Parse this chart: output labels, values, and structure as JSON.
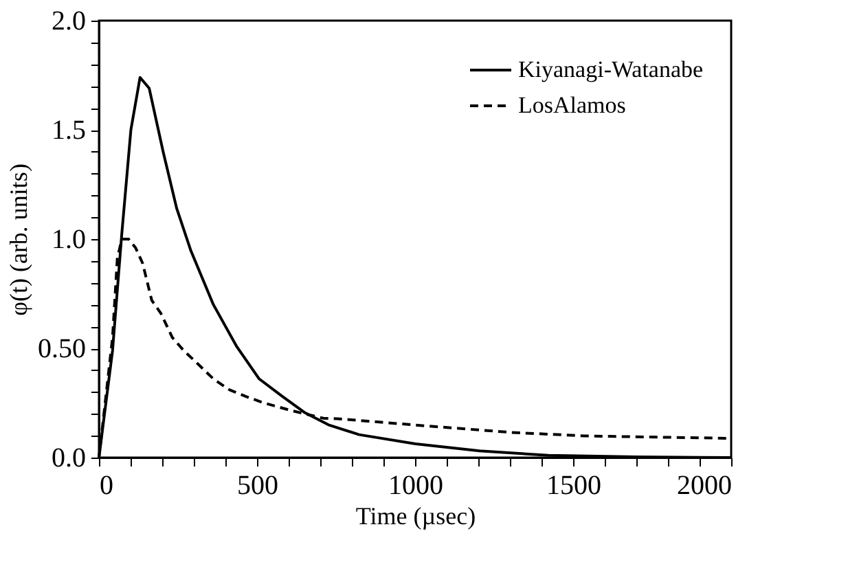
{
  "chart_data": {
    "type": "line",
    "xlabel": "Time (µsec)",
    "ylabel": "φ(t) (arb. units)",
    "xlim": [
      0,
      2000
    ],
    "ylim": [
      0,
      2.0
    ],
    "xticks": [
      0,
      {
        "value": 100,
        "label": null
      },
      {
        "value": 200,
        "label": null
      },
      {
        "value": 300,
        "label": null
      },
      {
        "value": 400,
        "label": null
      },
      500,
      {
        "value": 600,
        "label": null
      },
      {
        "value": 700,
        "label": null
      },
      {
        "value": 800,
        "label": null
      },
      {
        "value": 900,
        "label": null
      },
      1000,
      {
        "value": 1100,
        "label": null
      },
      {
        "value": 1200,
        "label": null
      },
      {
        "value": 1300,
        "label": null
      },
      {
        "value": 1400,
        "label": null
      },
      1500,
      {
        "value": 1600,
        "label": null
      },
      {
        "value": 1700,
        "label": null
      },
      {
        "value": 1800,
        "label": null
      },
      {
        "value": 1900,
        "label": null
      },
      2000
    ],
    "yticks": [
      {
        "value": 0,
        "label": "0.0"
      },
      {
        "value": 0.1,
        "label": null
      },
      {
        "value": 0.2,
        "label": null
      },
      {
        "value": 0.3,
        "label": null
      },
      {
        "value": 0.4,
        "label": null
      },
      {
        "value": 0.5,
        "label": "0.50"
      },
      {
        "value": 0.6,
        "label": null
      },
      {
        "value": 0.7,
        "label": null
      },
      {
        "value": 0.8,
        "label": null
      },
      {
        "value": 0.9,
        "label": null
      },
      {
        "value": 1.0,
        "label": "1.0"
      },
      {
        "value": 1.1,
        "label": null
      },
      {
        "value": 1.2,
        "label": null
      },
      {
        "value": 1.3,
        "label": null
      },
      {
        "value": 1.4,
        "label": null
      },
      {
        "value": 1.5,
        "label": "1.5"
      },
      {
        "value": 1.6,
        "label": null
      },
      {
        "value": 1.7,
        "label": null
      },
      {
        "value": 1.8,
        "label": null
      },
      {
        "value": 1.9,
        "label": null
      },
      {
        "value": 2.0,
        "label": "2.0"
      }
    ],
    "grid": false,
    "legend": "top right",
    "marker": "none",
    "series": [
      {
        "name": "Kiyanagi-Watanabe",
        "color": "#000000",
        "line_style": "solid",
        "x": [
          0,
          43,
          72,
          101,
          130,
          159,
          203,
          246,
          290,
          362,
          435,
          507,
          580,
          652,
          726,
          823,
          1001,
          1204,
          1422,
          1700,
          2000
        ],
        "values": [
          0,
          0.49,
          1.02,
          1.5,
          1.74,
          1.69,
          1.4,
          1.14,
          0.95,
          0.7,
          0.51,
          0.36,
          0.28,
          0.205,
          0.15,
          0.105,
          0.063,
          0.031,
          0.01,
          0.003,
          0
        ]
      },
      {
        "name": "LosAlamos",
        "color": "#000000",
        "line_style": "dashed",
        "x": [
          0,
          43,
          58,
          72,
          94,
          116,
          138,
          167,
          196,
          232,
          268,
          312,
          362,
          413,
          464,
          522,
          609,
          710,
          755,
          1016,
          1306,
          1538,
          2000
        ],
        "values": [
          0,
          0.55,
          0.91,
          1.0,
          1.0,
          0.96,
          0.89,
          0.72,
          0.66,
          0.55,
          0.49,
          0.43,
          0.36,
          0.31,
          0.28,
          0.25,
          0.215,
          0.18,
          0.178,
          0.147,
          0.115,
          0.099,
          0.088
        ]
      }
    ]
  }
}
